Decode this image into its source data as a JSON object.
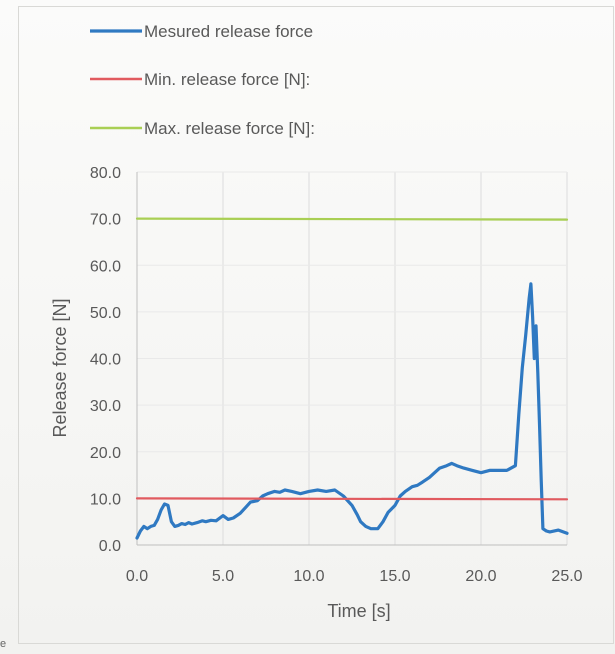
{
  "chart_data": {
    "type": "line",
    "xlabel": "Time [s]",
    "ylabel": "Release force [N]",
    "xlim": [
      0,
      25
    ],
    "ylim": [
      0,
      80
    ],
    "x_ticks": [
      "0.0",
      "5.0",
      "10.0",
      "15.0",
      "20.0",
      "25.0"
    ],
    "y_ticks": [
      "0.0",
      "10.0",
      "20.0",
      "30.0",
      "40.0",
      "50.0",
      "60.0",
      "70.0",
      "80.0"
    ],
    "grid": "vertical",
    "legend_position": "top",
    "series": [
      {
        "name": "Mesured release force",
        "color": "#2f79c2",
        "x": [
          0.0,
          0.2,
          0.4,
          0.6,
          0.8,
          1.0,
          1.2,
          1.4,
          1.6,
          1.8,
          2.0,
          2.2,
          2.4,
          2.6,
          2.8,
          3.0,
          3.2,
          3.5,
          3.8,
          4.0,
          4.3,
          4.6,
          5.0,
          5.3,
          5.6,
          6.0,
          6.3,
          6.6,
          7.0,
          7.3,
          7.6,
          8.0,
          8.3,
          8.6,
          9.0,
          9.5,
          10.0,
          10.5,
          11.0,
          11.5,
          12.0,
          12.5,
          12.8,
          13.0,
          13.3,
          13.6,
          14.0,
          14.3,
          14.6,
          15.0,
          15.3,
          15.6,
          16.0,
          16.3,
          16.6,
          17.0,
          17.3,
          17.6,
          18.0,
          18.3,
          18.6,
          19.0,
          19.5,
          20.0,
          20.5,
          21.0,
          21.5,
          22.0,
          22.2,
          22.4,
          22.6,
          22.8,
          22.9,
          23.0,
          23.1,
          23.2,
          23.3,
          23.4,
          23.5,
          23.6,
          23.8,
          24.0,
          24.5,
          25.0
        ],
        "y": [
          1.5,
          3.0,
          4.0,
          3.5,
          4.0,
          4.2,
          5.5,
          7.5,
          8.8,
          8.5,
          5.0,
          4.0,
          4.2,
          4.6,
          4.4,
          4.8,
          4.5,
          4.8,
          5.2,
          5.0,
          5.3,
          5.2,
          6.3,
          5.5,
          5.8,
          6.8,
          8.0,
          9.2,
          9.5,
          10.5,
          11.0,
          11.5,
          11.3,
          11.8,
          11.5,
          11.0,
          11.5,
          11.8,
          11.5,
          11.8,
          10.5,
          8.5,
          6.5,
          5.0,
          4.0,
          3.5,
          3.5,
          5.0,
          7.0,
          8.5,
          10.5,
          11.5,
          12.5,
          12.8,
          13.5,
          14.5,
          15.5,
          16.5,
          17.0,
          17.5,
          17.0,
          16.5,
          16.0,
          15.5,
          16.0,
          16.0,
          16.0,
          17.0,
          28.0,
          38.0,
          45.0,
          53.0,
          56.0,
          49.0,
          40.0,
          47.0,
          37.0,
          26.0,
          14.0,
          3.5,
          3.0,
          2.8,
          3.2,
          2.5
        ]
      },
      {
        "name": "Min. release force [N]:",
        "color": "#e15a5f",
        "x": [
          0,
          25
        ],
        "y": [
          10.0,
          9.8
        ]
      },
      {
        "name": "Max. release force [N]:",
        "color": "#a9cf54",
        "x": [
          0,
          25
        ],
        "y": [
          70.0,
          69.8
        ]
      }
    ]
  },
  "page": {
    "corner_mark": "e"
  }
}
